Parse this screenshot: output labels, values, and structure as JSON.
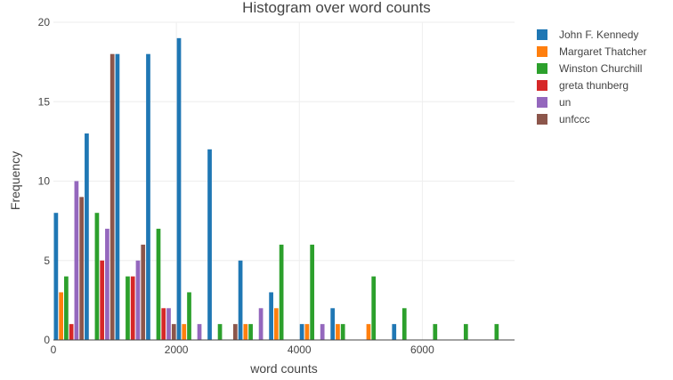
{
  "chart_data": {
    "type": "bar",
    "title": "Histogram over word counts",
    "xlabel": "word counts",
    "ylabel": "Frequency",
    "xlim": [
      0,
      7500
    ],
    "ylim": [
      0,
      20
    ],
    "x_ticks": [
      0,
      2000,
      4000,
      6000
    ],
    "y_ticks": [
      0,
      5,
      10,
      15,
      20
    ],
    "grid": true,
    "legend_position": "top-right",
    "bin_width": 500,
    "bin_starts": [
      0,
      500,
      1000,
      1500,
      2000,
      2500,
      3000,
      3500,
      4000,
      4500,
      5000,
      5500,
      6000,
      6500,
      7000
    ],
    "series": [
      {
        "name": "John F. Kennedy",
        "color": "#1f77b4",
        "values": [
          8,
          13,
          18,
          18,
          19,
          12,
          5,
          3,
          1,
          2,
          0,
          1,
          0,
          0,
          0
        ]
      },
      {
        "name": "Margaret Thatcher",
        "color": "#ff7f0e",
        "values": [
          3,
          0,
          0,
          0,
          1,
          0,
          1,
          2,
          1,
          1,
          1,
          0,
          0,
          0,
          0
        ]
      },
      {
        "name": "Winston Churchill",
        "color": "#2ca02c",
        "values": [
          4,
          8,
          4,
          7,
          3,
          1,
          1,
          6,
          6,
          1,
          4,
          2,
          1,
          1,
          1
        ]
      },
      {
        "name": "greta thunberg",
        "color": "#d62728",
        "values": [
          1,
          5,
          4,
          2,
          0,
          0,
          0,
          0,
          0,
          0,
          0,
          0,
          0,
          0,
          0
        ]
      },
      {
        "name": "un",
        "color": "#9467bd",
        "values": [
          10,
          7,
          5,
          2,
          1,
          0,
          2,
          0,
          1,
          0,
          0,
          0,
          0,
          0,
          0
        ]
      },
      {
        "name": "unfccc",
        "color": "#8c564b",
        "values": [
          9,
          18,
          6,
          1,
          0,
          1,
          0,
          0,
          0,
          0,
          0,
          0,
          0,
          0,
          0
        ]
      }
    ]
  }
}
